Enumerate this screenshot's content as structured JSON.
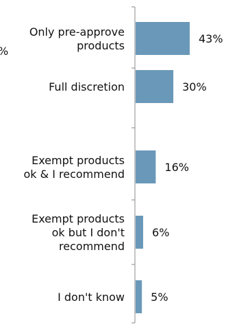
{
  "chart_data": {
    "type": "bar",
    "orientation": "horizontal",
    "categories": [
      [
        "Only pre-approve",
        "products"
      ],
      [
        "Full discretion"
      ],
      [
        "Exempt products",
        "ok & I recommend"
      ],
      [
        "Exempt products",
        "ok but I don't",
        "recommend"
      ],
      [
        "I don't know"
      ]
    ],
    "values": [
      43,
      30,
      16,
      6,
      5
    ],
    "value_labels": [
      "43%",
      "30%",
      "16%",
      "6%",
      "5%"
    ],
    "bar_color": "#6a98b9",
    "axis_color": "#888888",
    "xlim": [
      0,
      43
    ],
    "grid": false,
    "legend": "none",
    "title": "",
    "xlabel": "",
    "ylabel": "",
    "cropped_text_left": "%"
  }
}
